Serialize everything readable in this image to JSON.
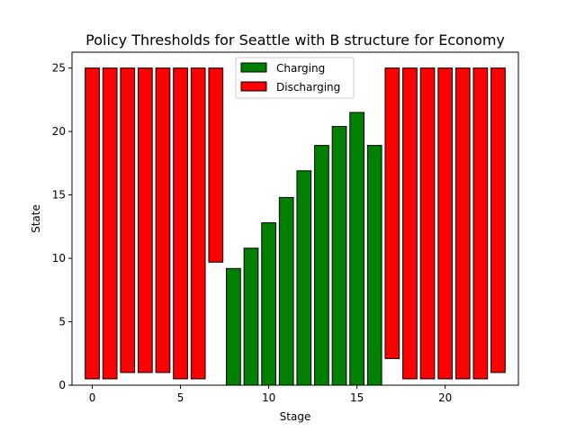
{
  "chart_data": {
    "type": "bar",
    "title": "Policy Thresholds for Seattle with B structure for Economy",
    "xlabel": "Stage",
    "ylabel": "State",
    "xlim": [
      -1.15,
      24.15
    ],
    "ylim": [
      0,
      26.25
    ],
    "xticks": [
      0,
      5,
      10,
      15,
      20
    ],
    "yticks": [
      0,
      5,
      10,
      15,
      20,
      25
    ],
    "grid": false,
    "legend": {
      "placement": "top-center",
      "entries": [
        "Charging",
        "Discharging"
      ]
    },
    "colors": {
      "Charging": "#008000",
      "Discharging": "#ff0000",
      "edge": "#000000"
    },
    "bars": [
      {
        "stage": 0,
        "series": "Discharging",
        "bottom": 0.5,
        "top": 25
      },
      {
        "stage": 1,
        "series": "Discharging",
        "bottom": 0.5,
        "top": 25
      },
      {
        "stage": 2,
        "series": "Discharging",
        "bottom": 1,
        "top": 25
      },
      {
        "stage": 3,
        "series": "Discharging",
        "bottom": 1,
        "top": 25
      },
      {
        "stage": 4,
        "series": "Discharging",
        "bottom": 1,
        "top": 25
      },
      {
        "stage": 5,
        "series": "Discharging",
        "bottom": 0.5,
        "top": 25
      },
      {
        "stage": 6,
        "series": "Discharging",
        "bottom": 0.5,
        "top": 25
      },
      {
        "stage": 7,
        "series": "Discharging",
        "bottom": 9.7,
        "top": 25
      },
      {
        "stage": 8,
        "series": "Charging",
        "bottom": 0,
        "top": 9.2
      },
      {
        "stage": 9,
        "series": "Charging",
        "bottom": 0,
        "top": 10.8
      },
      {
        "stage": 10,
        "series": "Charging",
        "bottom": 0,
        "top": 12.8
      },
      {
        "stage": 11,
        "series": "Charging",
        "bottom": 0,
        "top": 14.8
      },
      {
        "stage": 12,
        "series": "Charging",
        "bottom": 0,
        "top": 16.9
      },
      {
        "stage": 13,
        "series": "Charging",
        "bottom": 0,
        "top": 18.9
      },
      {
        "stage": 14,
        "series": "Charging",
        "bottom": 0,
        "top": 20.4
      },
      {
        "stage": 15,
        "series": "Charging",
        "bottom": 0,
        "top": 21.5
      },
      {
        "stage": 16,
        "series": "Charging",
        "bottom": 0,
        "top": 18.9
      },
      {
        "stage": 17,
        "series": "Discharging",
        "bottom": 2.1,
        "top": 25
      },
      {
        "stage": 18,
        "series": "Discharging",
        "bottom": 0.5,
        "top": 25
      },
      {
        "stage": 19,
        "series": "Discharging",
        "bottom": 0.5,
        "top": 25
      },
      {
        "stage": 20,
        "series": "Discharging",
        "bottom": 0.5,
        "top": 25
      },
      {
        "stage": 21,
        "series": "Discharging",
        "bottom": 0.5,
        "top": 25
      },
      {
        "stage": 22,
        "series": "Discharging",
        "bottom": 0.5,
        "top": 25
      },
      {
        "stage": 23,
        "series": "Discharging",
        "bottom": 1,
        "top": 25
      }
    ]
  }
}
